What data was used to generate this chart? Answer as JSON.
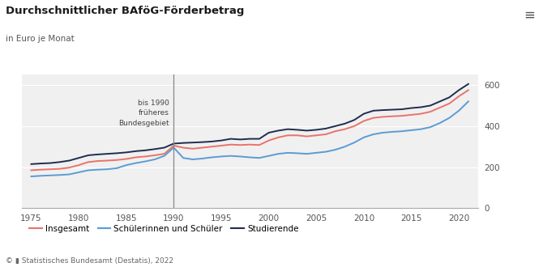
{
  "title": "Durchschnittlicher BAföG-Förderbetrag",
  "subtitle": "in Euro je Monat",
  "footnote": "© ▮ Statistisches Bundesamt (Destatis), 2022",
  "vline_label": "bis 1990\nfrüheres\nBundesgebiet",
  "vline_x": 1990,
  "legend": [
    "Insgesamt",
    "Schülerinnen und Schüler",
    "Studierende"
  ],
  "colors": {
    "insgesamt": "#e8736c",
    "schueler": "#5b9bd5",
    "studierende": "#1f2d4e"
  },
  "background": "#ffffff",
  "plot_bg": "#f0f0f0",
  "xlim": [
    1974,
    2022
  ],
  "ylim": [
    0,
    650
  ],
  "yticks": [
    0,
    200,
    400,
    600
  ],
  "xticks": [
    1975,
    1980,
    1985,
    1990,
    1995,
    2000,
    2005,
    2010,
    2015,
    2020
  ],
  "insgesamt": {
    "years": [
      1975,
      1976,
      1977,
      1978,
      1979,
      1980,
      1981,
      1982,
      1983,
      1984,
      1985,
      1986,
      1987,
      1988,
      1989,
      1990,
      1991,
      1992,
      1993,
      1994,
      1995,
      1996,
      1997,
      1998,
      1999,
      2000,
      2001,
      2002,
      2003,
      2004,
      2005,
      2006,
      2007,
      2008,
      2009,
      2010,
      2011,
      2012,
      2013,
      2014,
      2015,
      2016,
      2017,
      2018,
      2019,
      2020,
      2021
    ],
    "values": [
      185,
      188,
      190,
      192,
      198,
      210,
      225,
      230,
      232,
      235,
      240,
      248,
      252,
      258,
      265,
      305,
      295,
      290,
      295,
      300,
      305,
      310,
      308,
      310,
      308,
      330,
      345,
      355,
      355,
      350,
      355,
      360,
      375,
      385,
      400,
      425,
      440,
      445,
      448,
      450,
      455,
      460,
      470,
      490,
      510,
      545,
      575
    ]
  },
  "schueler": {
    "years": [
      1975,
      1976,
      1977,
      1978,
      1979,
      1980,
      1981,
      1982,
      1983,
      1984,
      1985,
      1986,
      1987,
      1988,
      1989,
      1990,
      1991,
      1992,
      1993,
      1994,
      1995,
      1996,
      1997,
      1998,
      1999,
      2000,
      2001,
      2002,
      2003,
      2004,
      2005,
      2006,
      2007,
      2008,
      2009,
      2010,
      2011,
      2012,
      2013,
      2014,
      2015,
      2016,
      2017,
      2018,
      2019,
      2020,
      2021
    ],
    "values": [
      155,
      158,
      160,
      162,
      165,
      175,
      185,
      188,
      190,
      195,
      210,
      220,
      228,
      238,
      255,
      295,
      245,
      238,
      242,
      248,
      252,
      255,
      252,
      248,
      245,
      255,
      265,
      270,
      268,
      265,
      270,
      275,
      285,
      300,
      320,
      345,
      360,
      368,
      372,
      375,
      380,
      385,
      395,
      415,
      440,
      475,
      520
    ]
  },
  "studierende": {
    "years": [
      1975,
      1976,
      1977,
      1978,
      1979,
      1980,
      1981,
      1982,
      1983,
      1984,
      1985,
      1986,
      1987,
      1988,
      1989,
      1990,
      1991,
      1992,
      1993,
      1994,
      1995,
      1996,
      1997,
      1998,
      1999,
      2000,
      2001,
      2002,
      2003,
      2004,
      2005,
      2006,
      2007,
      2008,
      2009,
      2010,
      2011,
      2012,
      2013,
      2014,
      2015,
      2016,
      2017,
      2018,
      2019,
      2020,
      2021
    ],
    "values": [
      215,
      218,
      220,
      225,
      232,
      245,
      258,
      262,
      265,
      268,
      272,
      278,
      282,
      288,
      295,
      315,
      318,
      320,
      322,
      325,
      330,
      338,
      335,
      338,
      338,
      368,
      378,
      385,
      382,
      378,
      382,
      388,
      400,
      412,
      430,
      460,
      475,
      478,
      480,
      482,
      488,
      492,
      500,
      520,
      540,
      575,
      605
    ]
  }
}
